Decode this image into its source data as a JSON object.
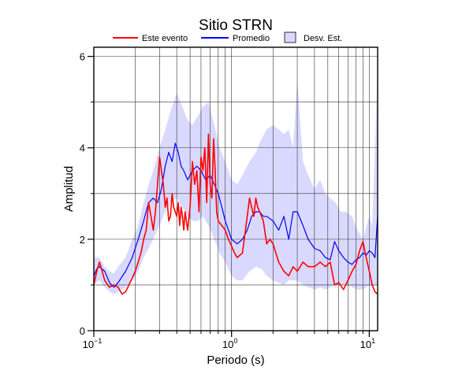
{
  "chart_data": {
    "type": "line",
    "title": "Sitio STRN",
    "xlabel": "Periodo (s)",
    "ylabel": "Amplitud",
    "x_scale": "log",
    "xlim": [
      0.1,
      11.5
    ],
    "ylim": [
      0,
      6.2
    ],
    "x_ticks": [
      {
        "value": 0.1,
        "base": "10",
        "exp": "−1"
      },
      {
        "value": 1,
        "base": "10",
        "exp": "0"
      },
      {
        "value": 10,
        "base": "10",
        "exp": "1"
      }
    ],
    "y_ticks": [
      {
        "value": 0,
        "label": "0"
      },
      {
        "value": 2,
        "label": "2"
      },
      {
        "value": 4,
        "label": "4"
      },
      {
        "value": 6,
        "label": "6"
      }
    ],
    "grid": true,
    "legend_position": "top",
    "legend": [
      {
        "label": "Este evento",
        "kind": "line",
        "color": "#ff0000"
      },
      {
        "label": "Promedio",
        "kind": "line",
        "color": "#0000ff"
      },
      {
        "label": "Desv. Est.",
        "kind": "box",
        "color": "#d9d9ff"
      }
    ],
    "band": {
      "name": "Desv. Est.",
      "color": "#d9d9ff",
      "x": [
        0.1,
        0.11,
        0.12,
        0.13,
        0.14,
        0.15,
        0.17,
        0.19,
        0.21,
        0.23,
        0.25,
        0.27,
        0.3,
        0.33,
        0.36,
        0.4,
        0.44,
        0.48,
        0.52,
        0.57,
        0.62,
        0.68,
        0.75,
        0.82,
        0.9,
        1.0,
        1.1,
        1.2,
        1.35,
        1.5,
        1.65,
        1.8,
        2.0,
        2.2,
        2.4,
        2.6,
        2.8,
        3.0,
        3.3,
        3.6,
        4.0,
        4.4,
        4.8,
        5.2,
        5.7,
        6.2,
        6.8,
        7.5,
        8.2,
        9.0,
        10.0,
        10.5,
        11.0,
        11.5
      ],
      "upper": [
        1.6,
        1.6,
        1.4,
        1.3,
        1.25,
        1.4,
        1.6,
        2.0,
        2.3,
        2.8,
        3.2,
        3.5,
        4.0,
        4.4,
        4.8,
        5.2,
        4.9,
        4.6,
        4.5,
        4.7,
        4.9,
        5.0,
        4.5,
        4.0,
        3.7,
        3.3,
        3.2,
        3.4,
        3.7,
        3.9,
        4.2,
        4.4,
        4.5,
        4.4,
        4.3,
        4.4,
        4.0,
        5.5,
        3.7,
        3.4,
        3.1,
        3.3,
        3.0,
        2.9,
        2.8,
        2.6,
        2.6,
        2.5,
        2.2,
        2.0,
        2.5,
        2.3,
        4.0,
        5.8
      ],
      "lower": [
        1.0,
        1.1,
        0.95,
        0.85,
        0.8,
        0.85,
        0.95,
        1.1,
        1.3,
        1.6,
        1.8,
        2.0,
        2.3,
        2.6,
        2.8,
        2.9,
        2.7,
        2.5,
        2.4,
        2.4,
        2.5,
        2.3,
        2.0,
        1.7,
        1.5,
        1.2,
        1.1,
        1.1,
        1.3,
        1.4,
        1.35,
        1.2,
        1.1,
        1.05,
        1.0,
        1.1,
        1.1,
        1.1,
        1.0,
        0.95,
        0.9,
        0.95,
        0.9,
        0.95,
        1.0,
        1.0,
        1.0,
        0.95,
        0.9,
        0.9,
        1.0,
        0.95,
        1.0,
        1.0
      ]
    },
    "series": [
      {
        "name": "Promedio",
        "color": "#0000ff",
        "x": [
          0.1,
          0.105,
          0.11,
          0.12,
          0.13,
          0.14,
          0.15,
          0.17,
          0.19,
          0.21,
          0.23,
          0.25,
          0.27,
          0.29,
          0.31,
          0.33,
          0.35,
          0.37,
          0.39,
          0.41,
          0.43,
          0.45,
          0.48,
          0.52,
          0.56,
          0.6,
          0.65,
          0.7,
          0.75,
          0.8,
          0.85,
          0.9,
          0.95,
          1.0,
          1.1,
          1.2,
          1.3,
          1.4,
          1.5,
          1.6,
          1.7,
          1.8,
          2.0,
          2.2,
          2.4,
          2.6,
          2.8,
          3.0,
          3.3,
          3.6,
          4.0,
          4.4,
          4.8,
          5.2,
          5.6,
          6.0,
          6.5,
          7.0,
          7.5,
          8.0,
          8.5,
          9.0,
          9.5,
          10.0,
          10.5,
          11.0,
          11.5
        ],
        "y": [
          1.2,
          1.35,
          1.4,
          1.3,
          1.05,
          0.95,
          1.05,
          1.3,
          1.6,
          2.0,
          2.4,
          2.8,
          2.9,
          2.8,
          3.1,
          3.6,
          3.9,
          3.7,
          4.1,
          3.9,
          3.6,
          3.5,
          3.3,
          3.5,
          3.6,
          3.5,
          3.3,
          3.4,
          3.2,
          3.0,
          2.7,
          2.4,
          2.2,
          2.0,
          1.9,
          2.0,
          2.2,
          2.5,
          2.6,
          2.6,
          2.5,
          2.5,
          2.4,
          2.2,
          2.5,
          2.0,
          2.6,
          2.6,
          2.3,
          2.0,
          1.8,
          1.75,
          1.6,
          1.55,
          1.95,
          1.75,
          1.6,
          1.5,
          1.45,
          1.55,
          1.6,
          1.7,
          1.65,
          1.75,
          1.7,
          1.6,
          2.5
        ]
      },
      {
        "name": "Este evento",
        "color": "#ff0000",
        "x": [
          0.1,
          0.105,
          0.11,
          0.115,
          0.12,
          0.13,
          0.14,
          0.15,
          0.16,
          0.17,
          0.18,
          0.19,
          0.2,
          0.21,
          0.22,
          0.23,
          0.24,
          0.25,
          0.26,
          0.27,
          0.28,
          0.29,
          0.3,
          0.31,
          0.32,
          0.33,
          0.34,
          0.35,
          0.36,
          0.37,
          0.38,
          0.39,
          0.4,
          0.41,
          0.42,
          0.43,
          0.44,
          0.45,
          0.46,
          0.48,
          0.5,
          0.52,
          0.54,
          0.56,
          0.58,
          0.6,
          0.62,
          0.64,
          0.66,
          0.68,
          0.7,
          0.72,
          0.74,
          0.76,
          0.78,
          0.8,
          0.85,
          0.9,
          0.95,
          1.0,
          1.05,
          1.1,
          1.2,
          1.3,
          1.35,
          1.4,
          1.45,
          1.5,
          1.55,
          1.6,
          1.7,
          1.8,
          1.9,
          2.0,
          2.2,
          2.4,
          2.6,
          2.8,
          3.0,
          3.3,
          3.6,
          4.0,
          4.4,
          4.8,
          5.2,
          5.6,
          6.0,
          6.5,
          7.0,
          7.5,
          8.0,
          8.5,
          9.0,
          9.5,
          10.0,
          10.5,
          11.0,
          11.5
        ],
        "y": [
          1.0,
          1.3,
          1.5,
          1.3,
          1.1,
          0.95,
          1.0,
          0.95,
          0.8,
          0.85,
          1.0,
          1.15,
          1.3,
          1.5,
          1.7,
          2.0,
          2.2,
          2.8,
          2.5,
          2.2,
          2.6,
          3.2,
          3.8,
          3.5,
          3.2,
          2.7,
          2.9,
          2.4,
          2.5,
          3.0,
          2.7,
          2.6,
          2.5,
          2.8,
          2.3,
          2.7,
          2.5,
          2.2,
          2.6,
          2.2,
          2.7,
          3.7,
          3.2,
          3.5,
          2.6,
          3.8,
          3.5,
          4.0,
          2.8,
          4.3,
          3.2,
          2.9,
          4.2,
          3.5,
          2.6,
          2.4,
          2.3,
          2.2,
          2.0,
          1.85,
          1.7,
          1.6,
          1.7,
          2.5,
          2.9,
          2.7,
          2.5,
          2.9,
          2.7,
          2.6,
          2.4,
          1.9,
          2.0,
          1.9,
          1.5,
          1.3,
          1.2,
          1.4,
          1.3,
          1.5,
          1.4,
          1.4,
          1.5,
          1.4,
          1.5,
          1.0,
          1.05,
          0.9,
          1.1,
          1.3,
          1.45,
          1.75,
          1.95,
          1.6,
          1.3,
          1.0,
          0.85,
          0.8
        ]
      }
    ]
  }
}
